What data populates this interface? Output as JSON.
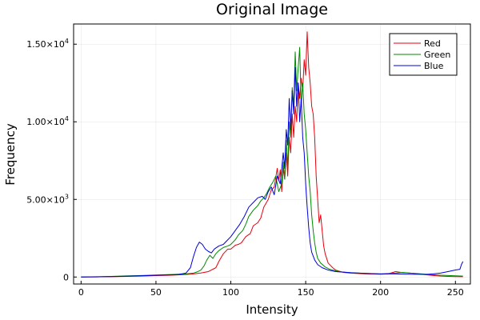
{
  "chart_data": {
    "type": "line",
    "title": "Original Image",
    "xlabel": "Intensity",
    "ylabel": "Frequency",
    "xlim": [
      -5,
      260
    ],
    "ylim": [
      -450,
      16300
    ],
    "x_ticks": [
      0,
      50,
      100,
      150,
      200,
      250
    ],
    "x_tick_labels": [
      "0",
      "50",
      "100",
      "150",
      "200",
      "250"
    ],
    "y_ticks": [
      0,
      5000,
      10000,
      15000
    ],
    "y_tick_labels": [
      {
        "mantissa": "0",
        "exp": ""
      },
      {
        "mantissa": "5.00×10",
        "exp": "3"
      },
      {
        "mantissa": "1.00×10",
        "exp": "4"
      },
      {
        "mantissa": "1.50×10",
        "exp": "4"
      }
    ],
    "grid": true,
    "legend_position": "top-right",
    "series": [
      {
        "name": "Red",
        "color": "#e8000b",
        "points": [
          [
            0,
            0
          ],
          [
            10,
            10
          ],
          [
            20,
            20
          ],
          [
            30,
            40
          ],
          [
            40,
            60
          ],
          [
            50,
            90
          ],
          [
            60,
            120
          ],
          [
            70,
            160
          ],
          [
            75,
            200
          ],
          [
            80,
            260
          ],
          [
            85,
            350
          ],
          [
            90,
            600
          ],
          [
            92,
            1000
          ],
          [
            95,
            1500
          ],
          [
            98,
            1800
          ],
          [
            100,
            1800
          ],
          [
            103,
            2050
          ],
          [
            105,
            2100
          ],
          [
            107,
            2200
          ],
          [
            110,
            2600
          ],
          [
            113,
            2800
          ],
          [
            115,
            3300
          ],
          [
            118,
            3500
          ],
          [
            120,
            3800
          ],
          [
            122,
            4500
          ],
          [
            125,
            5000
          ],
          [
            127,
            5600
          ],
          [
            129,
            5800
          ],
          [
            131,
            7000
          ],
          [
            132,
            6200
          ],
          [
            133,
            6900
          ],
          [
            134,
            5500
          ],
          [
            135,
            7000
          ],
          [
            136,
            6300
          ],
          [
            137,
            8000
          ],
          [
            138,
            6500
          ],
          [
            139,
            9000
          ],
          [
            140,
            8000
          ],
          [
            141,
            10500
          ],
          [
            142,
            9000
          ],
          [
            143,
            11000
          ],
          [
            144,
            10000
          ],
          [
            145,
            12500
          ],
          [
            146,
            11500
          ],
          [
            147,
            12800
          ],
          [
            148,
            12000
          ],
          [
            149,
            14000
          ],
          [
            150,
            13000
          ],
          [
            151,
            15800
          ],
          [
            152,
            13500
          ],
          [
            153,
            12500
          ],
          [
            154,
            11000
          ],
          [
            155,
            10500
          ],
          [
            156,
            9000
          ],
          [
            157,
            6500
          ],
          [
            158,
            5000
          ],
          [
            159,
            3500
          ],
          [
            160,
            4000
          ],
          [
            161,
            3000
          ],
          [
            162,
            2000
          ],
          [
            163,
            1500
          ],
          [
            165,
            900
          ],
          [
            168,
            600
          ],
          [
            170,
            450
          ],
          [
            175,
            300
          ],
          [
            180,
            250
          ],
          [
            190,
            200
          ],
          [
            200,
            180
          ],
          [
            205,
            200
          ],
          [
            210,
            350
          ],
          [
            215,
            280
          ],
          [
            220,
            250
          ],
          [
            225,
            200
          ],
          [
            230,
            150
          ],
          [
            235,
            100
          ],
          [
            240,
            60
          ],
          [
            245,
            40
          ],
          [
            250,
            30
          ],
          [
            255,
            20
          ]
        ]
      },
      {
        "name": "Green",
        "color": "#008a00",
        "points": [
          [
            0,
            0
          ],
          [
            10,
            20
          ],
          [
            20,
            40
          ],
          [
            30,
            70
          ],
          [
            40,
            100
          ],
          [
            50,
            130
          ],
          [
            60,
            160
          ],
          [
            70,
            200
          ],
          [
            75,
            250
          ],
          [
            78,
            350
          ],
          [
            80,
            450
          ],
          [
            82,
            700
          ],
          [
            84,
            1100
          ],
          [
            86,
            1400
          ],
          [
            88,
            1200
          ],
          [
            90,
            1500
          ],
          [
            92,
            1700
          ],
          [
            95,
            1900
          ],
          [
            98,
            2000
          ],
          [
            100,
            2100
          ],
          [
            103,
            2400
          ],
          [
            105,
            2700
          ],
          [
            108,
            3000
          ],
          [
            110,
            3400
          ],
          [
            112,
            3900
          ],
          [
            115,
            4300
          ],
          [
            118,
            4600
          ],
          [
            120,
            4900
          ],
          [
            122,
            5100
          ],
          [
            124,
            5400
          ],
          [
            126,
            5800
          ],
          [
            128,
            6100
          ],
          [
            130,
            6500
          ],
          [
            132,
            5500
          ],
          [
            134,
            6000
          ],
          [
            135,
            7400
          ],
          [
            136,
            6300
          ],
          [
            137,
            8800
          ],
          [
            138,
            7000
          ],
          [
            139,
            10000
          ],
          [
            140,
            9000
          ],
          [
            141,
            12200
          ],
          [
            142,
            11000
          ],
          [
            143,
            14500
          ],
          [
            144,
            12000
          ],
          [
            145,
            13500
          ],
          [
            146,
            14800
          ],
          [
            147,
            11000
          ],
          [
            148,
            12500
          ],
          [
            149,
            10500
          ],
          [
            150,
            9500
          ],
          [
            151,
            8000
          ],
          [
            152,
            6500
          ],
          [
            153,
            5500
          ],
          [
            154,
            4000
          ],
          [
            155,
            3000
          ],
          [
            156,
            2200
          ],
          [
            157,
            1600
          ],
          [
            158,
            1200
          ],
          [
            160,
            900
          ],
          [
            163,
            650
          ],
          [
            166,
            500
          ],
          [
            170,
            400
          ],
          [
            175,
            320
          ],
          [
            180,
            280
          ],
          [
            190,
            230
          ],
          [
            200,
            200
          ],
          [
            210,
            250
          ],
          [
            215,
            300
          ],
          [
            220,
            250
          ],
          [
            225,
            220
          ],
          [
            230,
            180
          ],
          [
            240,
            120
          ],
          [
            250,
            80
          ],
          [
            255,
            60
          ]
        ]
      },
      {
        "name": "Blue",
        "color": "#0000e0",
        "points": [
          [
            0,
            0
          ],
          [
            10,
            10
          ],
          [
            20,
            30
          ],
          [
            30,
            50
          ],
          [
            40,
            80
          ],
          [
            50,
            110
          ],
          [
            60,
            140
          ],
          [
            65,
            160
          ],
          [
            70,
            250
          ],
          [
            73,
            600
          ],
          [
            75,
            1300
          ],
          [
            77,
            1900
          ],
          [
            79,
            2250
          ],
          [
            81,
            2100
          ],
          [
            83,
            1800
          ],
          [
            85,
            1650
          ],
          [
            87,
            1550
          ],
          [
            89,
            1800
          ],
          [
            92,
            2000
          ],
          [
            95,
            2100
          ],
          [
            97,
            2300
          ],
          [
            100,
            2600
          ],
          [
            103,
            3000
          ],
          [
            106,
            3400
          ],
          [
            109,
            3900
          ],
          [
            112,
            4500
          ],
          [
            115,
            4800
          ],
          [
            118,
            5100
          ],
          [
            121,
            5200
          ],
          [
            123,
            5000
          ],
          [
            125,
            5500
          ],
          [
            127,
            5800
          ],
          [
            129,
            5300
          ],
          [
            131,
            6500
          ],
          [
            133,
            6000
          ],
          [
            135,
            8000
          ],
          [
            136,
            7000
          ],
          [
            137,
            9500
          ],
          [
            138,
            8500
          ],
          [
            139,
            11500
          ],
          [
            140,
            9500
          ],
          [
            141,
            12000
          ],
          [
            142,
            10500
          ],
          [
            143,
            13500
          ],
          [
            144,
            11000
          ],
          [
            145,
            12500
          ],
          [
            146,
            10000
          ],
          [
            147,
            11500
          ],
          [
            148,
            9000
          ],
          [
            149,
            8000
          ],
          [
            150,
            6000
          ],
          [
            151,
            4500
          ],
          [
            152,
            3200
          ],
          [
            153,
            2200
          ],
          [
            154,
            1600
          ],
          [
            156,
            1100
          ],
          [
            158,
            800
          ],
          [
            161,
            600
          ],
          [
            165,
            450
          ],
          [
            170,
            350
          ],
          [
            180,
            280
          ],
          [
            190,
            230
          ],
          [
            200,
            200
          ],
          [
            210,
            200
          ],
          [
            220,
            180
          ],
          [
            230,
            170
          ],
          [
            235,
            200
          ],
          [
            240,
            250
          ],
          [
            245,
            350
          ],
          [
            250,
            450
          ],
          [
            253,
            500
          ],
          [
            254,
            800
          ],
          [
            255,
            1000
          ]
        ]
      }
    ]
  }
}
